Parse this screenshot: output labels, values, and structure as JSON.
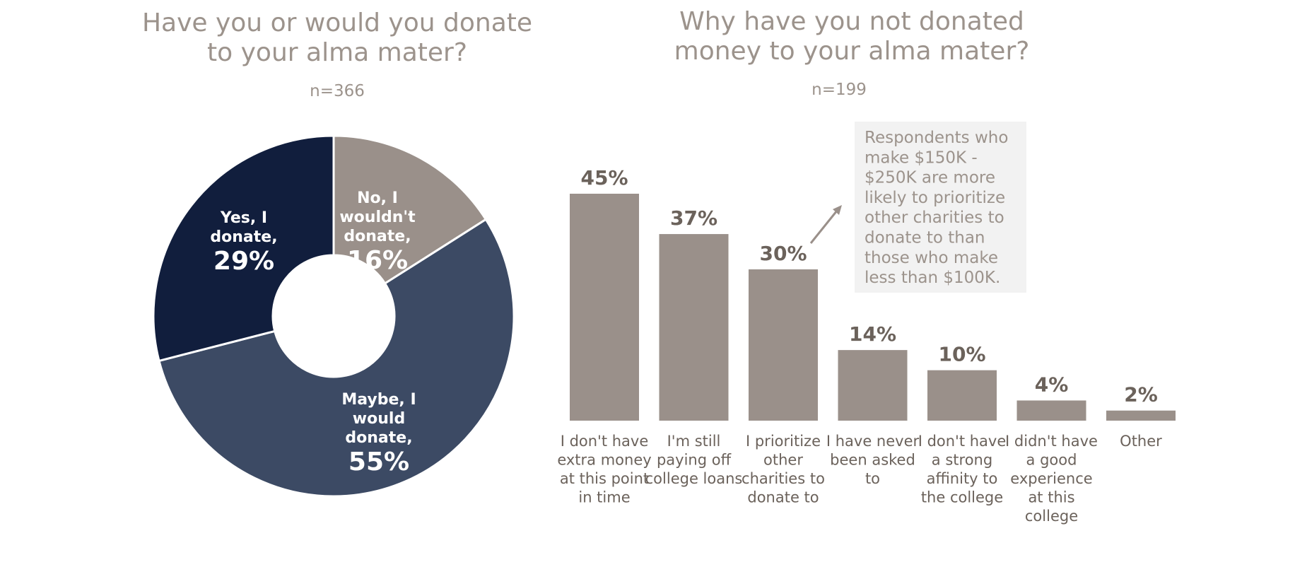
{
  "chart_data": [
    {
      "type": "pie",
      "title": [
        "Have you or would you donate",
        "to your alma mater?"
      ],
      "subtitle": "n=366",
      "slices": [
        {
          "label": [
            "No, I",
            "wouldn't",
            "donate,"
          ],
          "value": 16,
          "value_label": "16%",
          "color": "#9a908a"
        },
        {
          "label": [
            "Maybe, I",
            "would",
            "donate,"
          ],
          "value": 55,
          "value_label": "55%",
          "color": "#3c4a64"
        },
        {
          "label": [
            "Yes, I",
            "donate,"
          ],
          "value": 29,
          "value_label": "29%",
          "color": "#111e3d"
        }
      ]
    },
    {
      "type": "bar",
      "title": [
        "Why have you not donated",
        "money to your alma mater?"
      ],
      "subtitle": "n=199",
      "categories": [
        [
          "I don't have",
          "extra money",
          "at this point",
          "in time"
        ],
        [
          "I'm still",
          "paying off",
          "college loans"
        ],
        [
          "I prioritize",
          "other",
          "charities to",
          "donate to"
        ],
        [
          "I have never",
          "been asked",
          "to"
        ],
        [
          "I don't have",
          "a strong",
          "affinity to",
          "the college"
        ],
        [
          "I didn't have",
          "a good",
          "experience",
          "at this",
          "college"
        ],
        [
          "Other"
        ]
      ],
      "values": [
        45,
        37,
        30,
        14,
        10,
        4,
        2
      ],
      "value_labels": [
        "45%",
        "37%",
        "30%",
        "14%",
        "10%",
        "4%",
        "2%"
      ],
      "bar_color": "#9a908a",
      "annotation": [
        "Respondents who",
        "make $150K -",
        "$250K are more",
        "likely to prioritize",
        "other charities to",
        "donate to than",
        "those who make",
        "less than $100K."
      ]
    }
  ]
}
